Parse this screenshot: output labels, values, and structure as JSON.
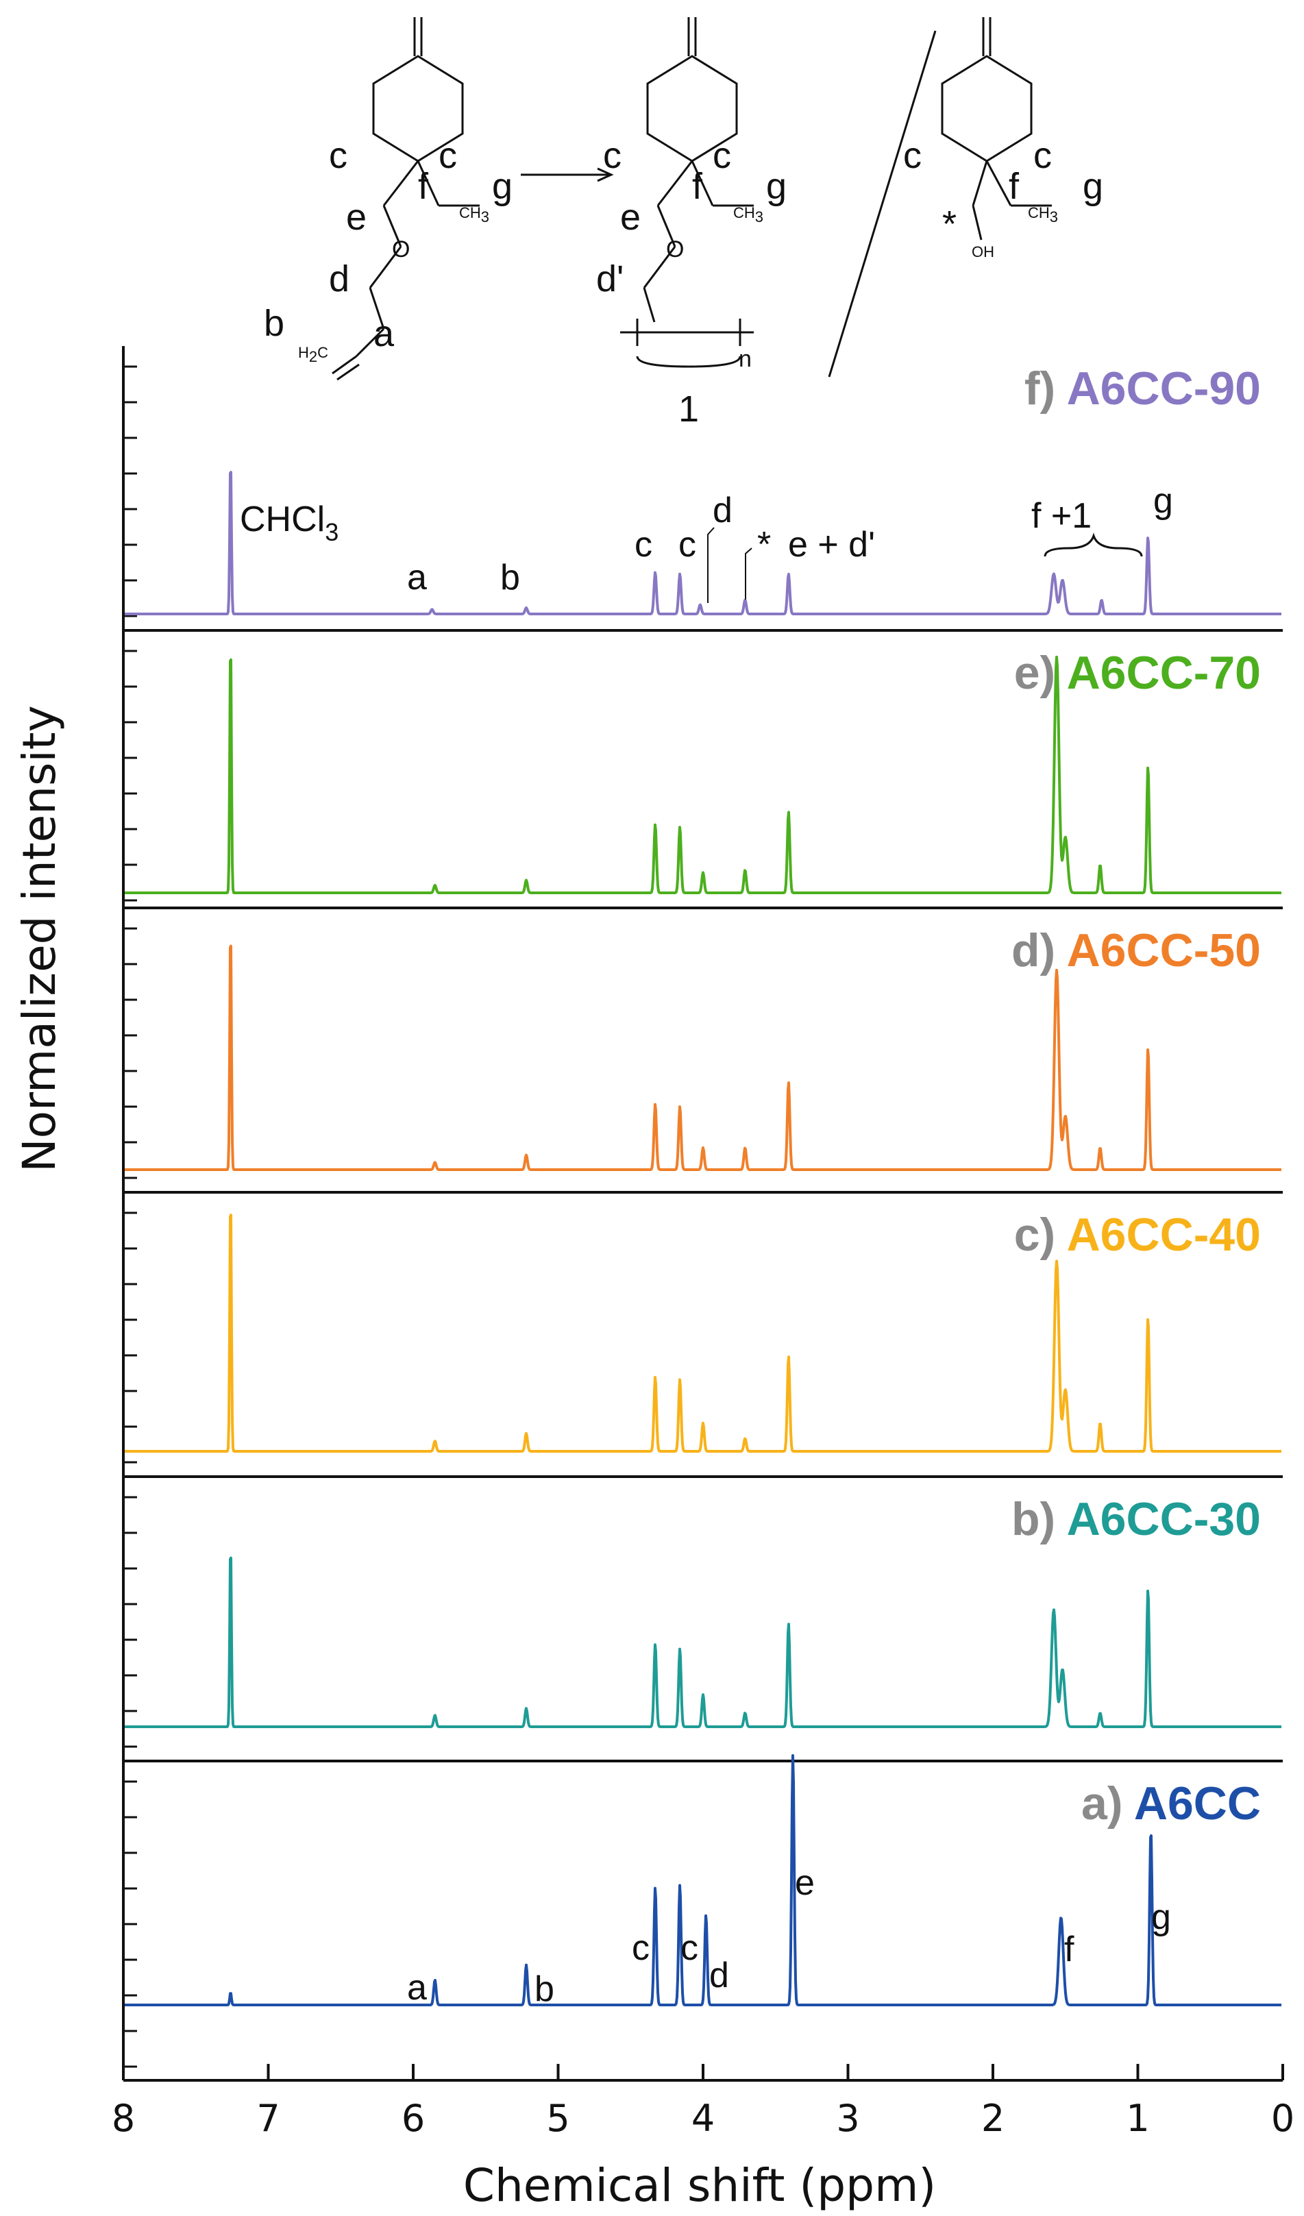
{
  "chart_data": {
    "type": "line",
    "title": "",
    "xlabel": "Chemical shift (ppm)",
    "ylabel": "Normalized intensity",
    "xlim": [
      8,
      0
    ],
    "x_reversed": true,
    "x_ticks": [
      8,
      7,
      6,
      5,
      4,
      3,
      2,
      1,
      0
    ],
    "solvent_peak_label": "CHCl",
    "solvent_peak_subscript": "3",
    "panels": [
      {
        "id": "f",
        "letter": "f)",
        "name": "A6CC-90",
        "color": "#8877C3",
        "peaks": [
          [
            7.26,
            1.0
          ],
          [
            5.87,
            0.03
          ],
          [
            5.22,
            0.04
          ],
          [
            4.33,
            0.27
          ],
          [
            4.16,
            0.26
          ],
          [
            4.02,
            0.06
          ],
          [
            3.71,
            0.09
          ],
          [
            3.41,
            0.26
          ],
          [
            1.58,
            0.26
          ],
          [
            1.52,
            0.22
          ],
          [
            1.25,
            0.09
          ],
          [
            0.93,
            0.5
          ]
        ],
        "annotations": [
          "CHCl",
          "a",
          "b",
          "c",
          "c",
          "d",
          "*",
          "e + d'",
          "f +1",
          "g"
        ]
      },
      {
        "id": "e",
        "letter": "e)",
        "name": "A6CC-70",
        "color": "#4CAF1E",
        "peaks": [
          [
            7.26,
            1.0
          ],
          [
            5.85,
            0.03
          ],
          [
            5.22,
            0.05
          ],
          [
            4.33,
            0.27
          ],
          [
            4.16,
            0.26
          ],
          [
            4.0,
            0.08
          ],
          [
            3.71,
            0.09
          ],
          [
            3.41,
            0.32
          ],
          [
            1.56,
            0.93
          ],
          [
            1.5,
            0.22
          ],
          [
            1.26,
            0.11
          ],
          [
            0.93,
            0.5
          ]
        ],
        "annotations": []
      },
      {
        "id": "d",
        "letter": "d)",
        "name": "A6CC-50",
        "color": "#F07F2A",
        "peaks": [
          [
            7.26,
            1.0
          ],
          [
            5.85,
            0.03
          ],
          [
            5.22,
            0.06
          ],
          [
            4.33,
            0.27
          ],
          [
            4.16,
            0.26
          ],
          [
            4.0,
            0.09
          ],
          [
            3.71,
            0.09
          ],
          [
            3.41,
            0.36
          ],
          [
            1.56,
            0.82
          ],
          [
            1.5,
            0.22
          ],
          [
            1.26,
            0.09
          ],
          [
            0.93,
            0.5
          ]
        ],
        "annotations": []
      },
      {
        "id": "c",
        "letter": "c)",
        "name": "A6CC-40",
        "color": "#F8B219",
        "peaks": [
          [
            7.26,
            1.0
          ],
          [
            5.85,
            0.04
          ],
          [
            5.22,
            0.07
          ],
          [
            4.33,
            0.29
          ],
          [
            4.16,
            0.28
          ],
          [
            4.0,
            0.11
          ],
          [
            3.71,
            0.05
          ],
          [
            3.41,
            0.37
          ],
          [
            1.56,
            0.74
          ],
          [
            1.5,
            0.24
          ],
          [
            1.26,
            0.11
          ],
          [
            0.93,
            0.52
          ]
        ],
        "annotations": []
      },
      {
        "id": "b",
        "letter": "b)",
        "name": "A6CC-30",
        "color": "#1E9C95",
        "peaks": [
          [
            7.26,
            0.8
          ],
          [
            5.85,
            0.05
          ],
          [
            5.22,
            0.08
          ],
          [
            4.33,
            0.36
          ],
          [
            4.16,
            0.34
          ],
          [
            4.0,
            0.14
          ],
          [
            3.71,
            0.06
          ],
          [
            3.41,
            0.45
          ],
          [
            1.58,
            0.51
          ],
          [
            1.52,
            0.25
          ],
          [
            1.26,
            0.06
          ],
          [
            0.93,
            0.6
          ]
        ],
        "annotations": []
      },
      {
        "id": "a",
        "letter": "a)",
        "name": "A6CC",
        "color": "#1E4FA8",
        "peaks": [
          [
            7.26,
            0.05
          ],
          [
            5.85,
            0.1
          ],
          [
            5.22,
            0.16
          ],
          [
            4.33,
            0.47
          ],
          [
            4.16,
            0.48
          ],
          [
            3.98,
            0.36
          ],
          [
            3.38,
            1.0
          ],
          [
            1.53,
            0.35
          ],
          [
            0.91,
            0.7
          ]
        ],
        "annotations": [
          "a",
          "b",
          "c",
          "c",
          "d",
          "e",
          "f",
          "g"
        ]
      }
    ]
  },
  "scheme": {
    "monomer_labels": [
      "c",
      "c",
      "f",
      "g",
      "e",
      "d",
      "b",
      "a"
    ],
    "h2c": "H",
    "h2c_2": "2",
    "h2c_c": "C",
    "ch3": "CH",
    "ch3_3": "3",
    "polymer_labels": [
      "c",
      "c",
      "f",
      "g",
      "e",
      "d'"
    ],
    "repeat_n": "n",
    "polymer_number": "1",
    "byproduct_labels": [
      "c",
      "c",
      "f",
      "g",
      "*"
    ],
    "oh": "OH"
  }
}
